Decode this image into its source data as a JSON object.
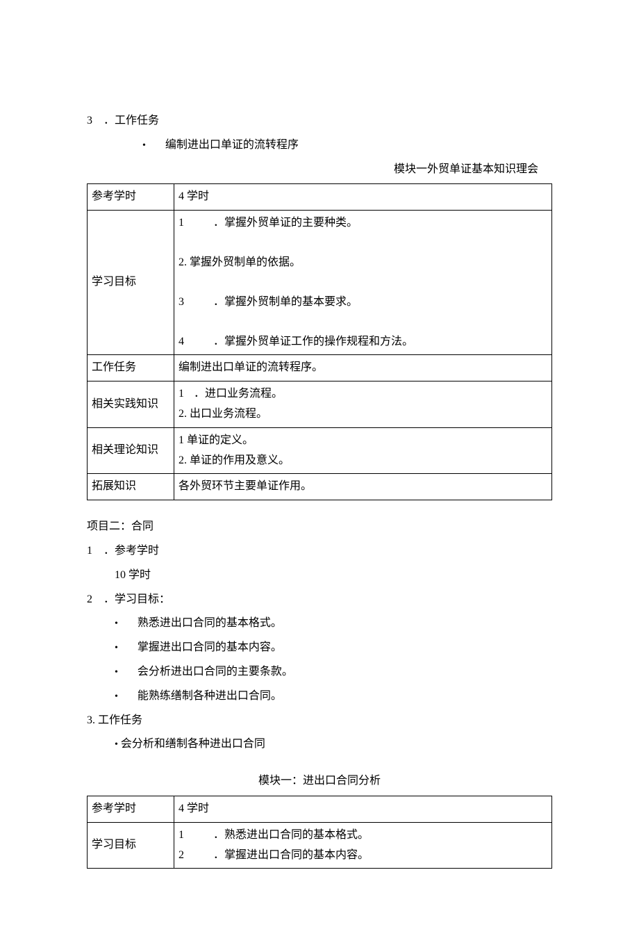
{
  "section1": {
    "heading_num": "3",
    "heading_text": "．工作任务",
    "bullet1": "编制进出口单证的流转程序"
  },
  "table1": {
    "title": "模块一外贸单证基本知识理会",
    "row1_label": "参考学时",
    "row1_value": "4 学时",
    "row2_label": "学习目标",
    "row2_item1_num": "1",
    "row2_item1_text": "．掌握外贸单证的主要种类。",
    "row2_item2": "2. 掌握外贸制单的依据。",
    "row2_item3_num": "3",
    "row2_item3_text": "．掌握外贸制单的基本要求。",
    "row2_item4_num": "4",
    "row2_item4_text": "．掌握外贸单证工作的操作规程和方法。",
    "row3_label": "工作任务",
    "row3_value": "编制进出口单证的流转程序。",
    "row4_label": "相关实践知识",
    "row4_item1_num": "1",
    "row4_item1_text": "．进口业务流程。",
    "row4_item2": "2. 出口业务流程。",
    "row5_label": "相关理论知识",
    "row5_item1": "1 单证的定义。",
    "row5_item2": "2. 单证的作用及意义。",
    "row6_label": "拓展知识",
    "row6_value": "各外贸环节主要单证作用。"
  },
  "section2": {
    "heading": "项目二：合同",
    "item1_num": "1",
    "item1_text": "．参考学时",
    "item1_value": "10 学时",
    "item2_num": "2",
    "item2_text": "．学习目标：",
    "bullet1": "熟悉进出口合同的基本格式。",
    "bullet2": "掌握进出口合同的基本内容。",
    "bullet3": "会分析进出口合同的主要条款。",
    "bullet4": "能熟练缮制各种进出口合同。",
    "item3": "3. 工作任务",
    "item3_bullet": "会分析和缮制各种进出口合同"
  },
  "table2": {
    "title": "模块一：进出口合同分析",
    "row1_label": "参考学时",
    "row1_value": "4 学时",
    "row2_label": "学习目标",
    "row2_item1_num": "1",
    "row2_item1_text": "．熟悉进出口合同的基本格式。",
    "row2_item2_num": "2",
    "row2_item2_text": "．掌握进出口合同的基本内容。"
  }
}
